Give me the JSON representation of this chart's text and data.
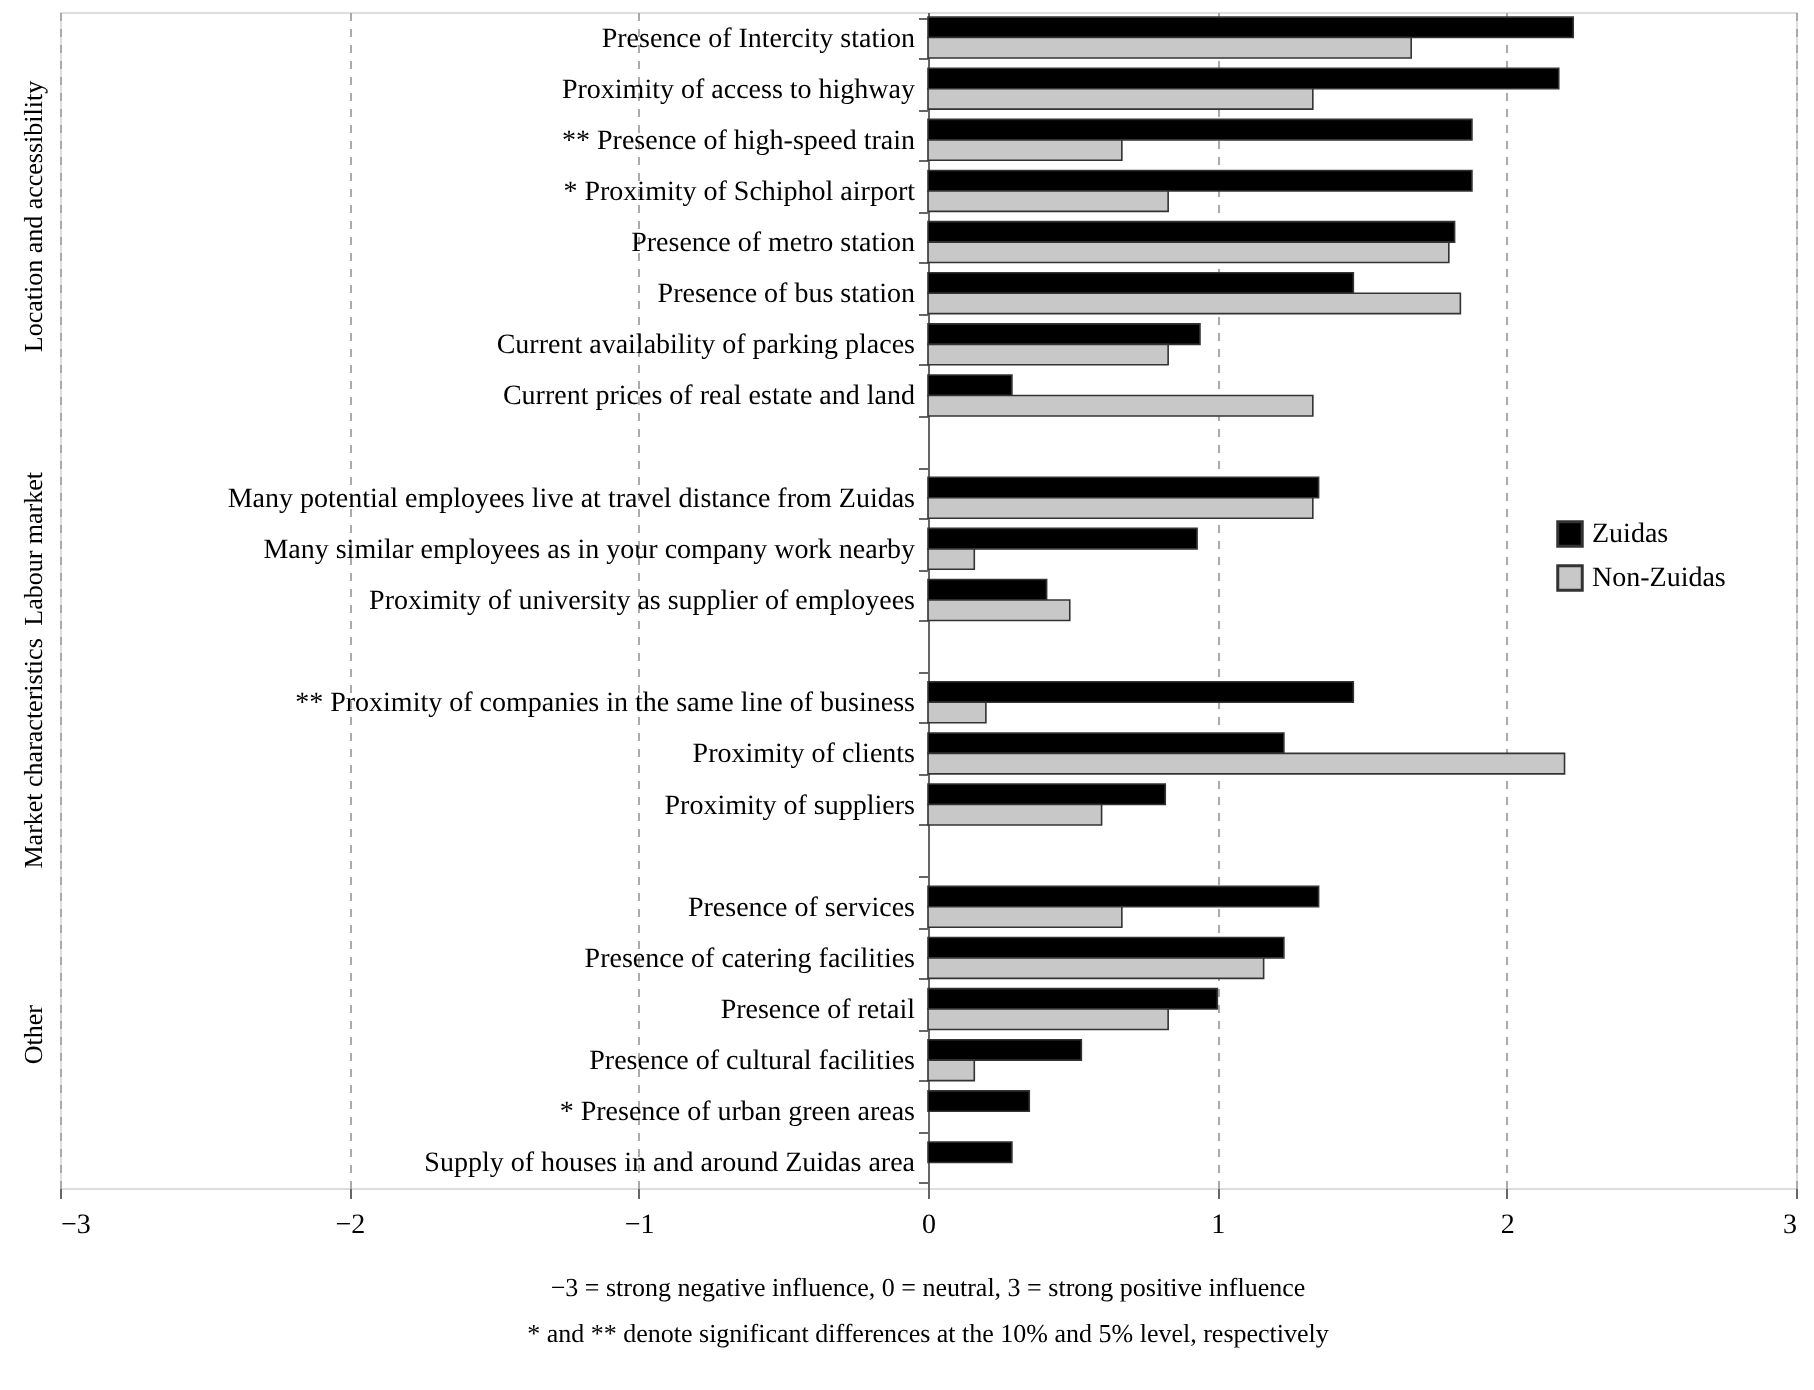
{
  "chart_data": {
    "type": "bar",
    "orientation": "horizontal",
    "categories": [
      "Presence of Intercity station",
      "Proximity of access to highway",
      "** Presence of high-speed train",
      "* Proximity of Schiphol airport",
      "Presence of metro station",
      "Presence of bus station",
      "Current availability of parking places",
      "Current prices of real estate and land",
      null,
      "Many potential employees live at travel distance from Zuidas",
      "Many similar employees as in your company work nearby",
      "Proximity of university as supplier of employees",
      null,
      "** Proximity of companies in the same line of business",
      "Proximity of clients",
      "Proximity of suppliers",
      null,
      "Presence of services",
      "Presence of catering facilities",
      "Presence of retail",
      "Presence of cultural facilities",
      "* Presence of urban green areas",
      "Supply of houses in and around Zuidas area"
    ],
    "series": [
      {
        "name": "Zuidas",
        "color": "#000000",
        "values": [
          2.23,
          2.18,
          1.88,
          1.88,
          1.82,
          1.47,
          0.94,
          0.29,
          null,
          1.35,
          0.93,
          0.41,
          null,
          1.47,
          1.23,
          0.82,
          null,
          1.35,
          1.23,
          1.0,
          0.53,
          0.35,
          0.29
        ]
      },
      {
        "name": "Non-Zuidas",
        "color": "#c8c8c8",
        "values": [
          1.67,
          1.33,
          0.67,
          0.83,
          1.8,
          1.84,
          0.83,
          1.33,
          null,
          1.33,
          0.16,
          0.49,
          null,
          0.2,
          2.2,
          0.6,
          null,
          0.67,
          1.16,
          0.83,
          0.16,
          null,
          null
        ]
      }
    ],
    "xlim": [
      -3,
      3
    ],
    "xticks": [
      {
        "value": -3,
        "label": "−3"
      },
      {
        "value": -2,
        "label": "−2"
      },
      {
        "value": -1,
        "label": "−1"
      },
      0,
      1,
      2,
      3
    ],
    "grid": "x",
    "legend": "right",
    "annotations": [
      "Location and accessibility",
      "Labour market",
      "Market characteristics",
      "Other",
      "−3 = strong negative influence, 0 = neutral, 3 = strong positive influence",
      "* and ** denote significant differences at the 10% and 5% level, respectively"
    ]
  }
}
